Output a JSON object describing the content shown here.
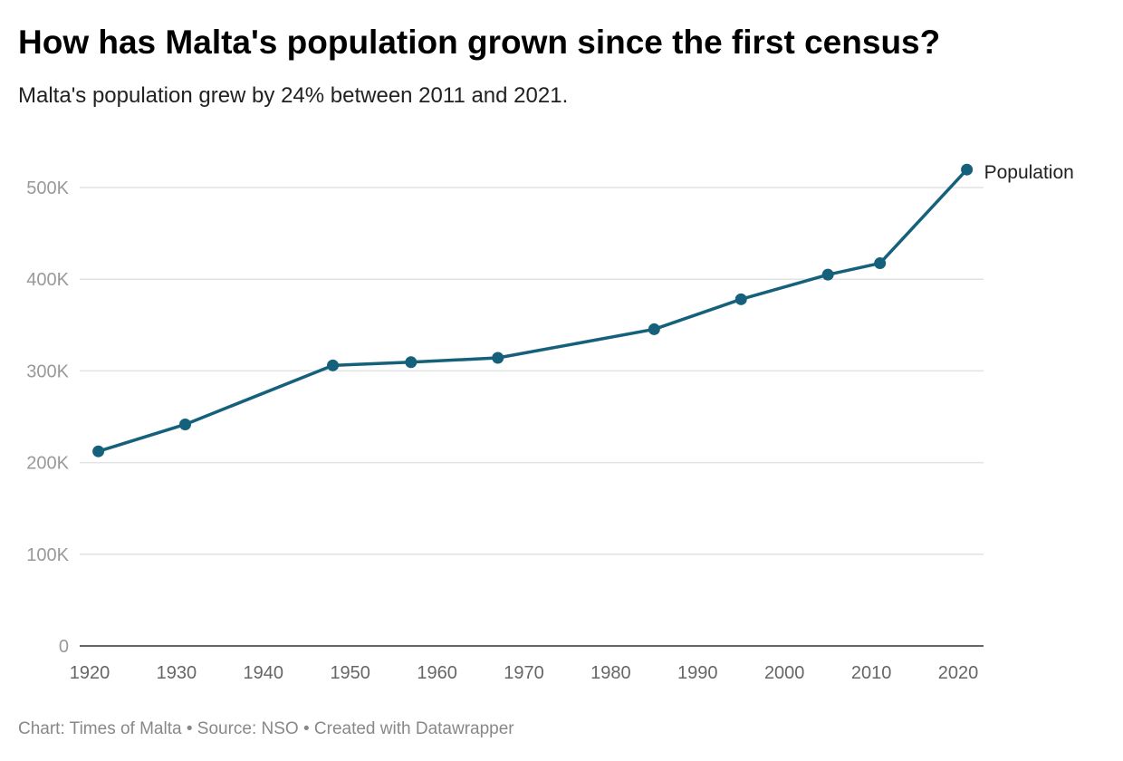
{
  "title": "How has Malta's population grown since the first census?",
  "subtitle": "Malta's population grew by 24% between 2011 and 2021.",
  "footer": "Chart: Times of Malta • Source: NSO • Created with Datawrapper",
  "chart_data": {
    "type": "line",
    "title": "How has Malta's population grown since the first census?",
    "xlabel": "",
    "ylabel": "",
    "x": [
      1921,
      1931,
      1948,
      1957,
      1967,
      1985,
      1995,
      2005,
      2011,
      2021
    ],
    "series": [
      {
        "name": "Population",
        "values": [
          212258,
          241621,
          305991,
          309500,
          314216,
          345418,
          378132,
          404962,
          417432,
          519562
        ],
        "color": "#15607a"
      }
    ],
    "xlim": [
      1920,
      2022
    ],
    "ylim": [
      0,
      520000
    ],
    "x_ticks": [
      "1920",
      "1930",
      "1940",
      "1950",
      "1960",
      "1970",
      "1980",
      "1990",
      "2000",
      "2010",
      "2020"
    ],
    "y_ticks": [
      "0",
      "100K",
      "200K",
      "300K",
      "400K",
      "500K"
    ],
    "grid": true,
    "legend": "end-of-line label"
  }
}
